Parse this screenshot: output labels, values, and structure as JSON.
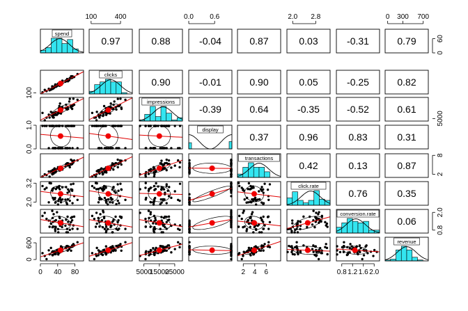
{
  "chart_data": {
    "type": "scatter",
    "variables": [
      "spend",
      "clicks",
      "impressions",
      "display",
      "transactions",
      "click.rate",
      "conversion.rate",
      "revenue"
    ],
    "correlations": [
      [
        "",
        "0.97",
        "0.88",
        "-0.04",
        "0.87",
        "0.03",
        "-0.31",
        "0.79"
      ],
      [
        "",
        "",
        "0.90",
        "-0.01",
        "0.90",
        "0.05",
        "-0.25",
        "0.82"
      ],
      [
        "",
        "",
        "",
        "-0.39",
        "0.64",
        "-0.35",
        "-0.52",
        "0.61"
      ],
      [
        "",
        "",
        "",
        "",
        "0.37",
        "0.96",
        "0.83",
        "0.31"
      ],
      [
        "",
        "",
        "",
        "",
        "",
        "0.42",
        "0.13",
        "0.87"
      ],
      [
        "",
        "",
        "",
        "",
        "",
        "",
        "0.76",
        "0.35"
      ],
      [
        "",
        "",
        "",
        "",
        "",
        "",
        "",
        "0.06"
      ],
      [
        "",
        "",
        "",
        "",
        "",
        "",
        "",
        ""
      ]
    ],
    "ranges": [
      [
        0,
        100
      ],
      [
        80,
        520
      ],
      [
        2000,
        30000
      ],
      [
        0,
        1
      ],
      [
        1,
        8.5
      ],
      [
        1.8,
        3.3
      ],
      [
        0.6,
        2.2
      ],
      [
        -50,
        800
      ]
    ],
    "axes": {
      "bottom": [
        {
          "col": 0,
          "ticks": [
            0,
            40,
            80
          ],
          "labels": [
            "0",
            "40",
            "80"
          ]
        },
        {
          "col": 2,
          "ticks": [
            5000,
            15000,
            25000
          ],
          "labels": [
            "5000",
            "15000",
            "25000"
          ]
        },
        {
          "col": 4,
          "ticks": [
            2,
            4,
            6
          ],
          "labels": [
            "2",
            "4",
            "6"
          ]
        },
        {
          "col": 6,
          "ticks": [
            0.8,
            1.2,
            1.6,
            2.0
          ],
          "labels": [
            "0.8",
            "1.2",
            "1.6",
            "2.0"
          ]
        }
      ],
      "top": [
        {
          "col": 1,
          "ticks": [
            100,
            400
          ],
          "labels": [
            "100",
            "400"
          ]
        },
        {
          "col": 3,
          "ticks": [
            0.0,
            0.6
          ],
          "labels": [
            "0.0",
            "0.6"
          ]
        },
        {
          "col": 5,
          "ticks": [
            2.0,
            2.8
          ],
          "labels": [
            "2.0",
            "2.8"
          ]
        },
        {
          "col": 7,
          "ticks": [
            0,
            300,
            700
          ],
          "labels": [
            "0",
            "300",
            "700"
          ]
        }
      ],
      "left": [
        {
          "row": 1,
          "ticks": [
            100
          ],
          "labels": [
            "100"
          ]
        },
        {
          "row": 3,
          "ticks": [
            0.0,
            1.0
          ],
          "labels": [
            "0.0",
            "1.0"
          ]
        },
        {
          "row": 5,
          "ticks": [
            2.0,
            3.2
          ],
          "labels": [
            "2.0",
            "3.2"
          ]
        },
        {
          "row": 7,
          "ticks": [
            0,
            600
          ],
          "labels": [
            "0",
            "600"
          ]
        }
      ],
      "right": [
        {
          "row": 0,
          "ticks": [
            0,
            60
          ],
          "labels": [
            "0",
            "60"
          ]
        },
        {
          "row": 2,
          "ticks": [
            5000
          ],
          "labels": [
            "5000"
          ]
        },
        {
          "row": 4,
          "ticks": [
            2,
            8
          ],
          "labels": [
            "2",
            "8"
          ]
        },
        {
          "row": 6,
          "ticks": [
            0.8,
            2.0
          ],
          "labels": [
            "0.8",
            "2.0"
          ]
        }
      ]
    },
    "colors": {
      "histogram": "#33e5f0",
      "fit": "#e00000",
      "center": "#f00000"
    }
  }
}
